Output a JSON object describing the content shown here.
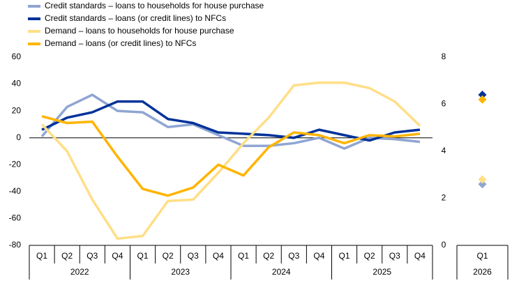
{
  "chart_data": [
    {
      "type": "line",
      "categories": [
        "Q1",
        "Q2",
        "Q3",
        "Q4",
        "Q1",
        "Q2",
        "Q3",
        "Q4",
        "Q1",
        "Q2",
        "Q3",
        "Q4",
        "Q1",
        "Q2",
        "Q3",
        "Q4"
      ],
      "groups": [
        "2022",
        "2023",
        "2024",
        "2025"
      ],
      "ylim": [
        -80,
        60
      ],
      "yticks": [
        -80,
        -60,
        -40,
        -20,
        0,
        20,
        40,
        60
      ],
      "legend": "top-left",
      "series": [
        {
          "name": "Credit standards – loans to households for house purchase",
          "color": "#8fa5d3",
          "values": [
            1,
            23,
            32,
            20,
            19,
            8,
            10,
            2,
            -6,
            -6,
            -4,
            0,
            -8,
            0,
            -1,
            -3
          ]
        },
        {
          "name": "Credit standards – loans (or credit lines) to NFCs",
          "color": "#003299",
          "values": [
            6,
            15,
            19,
            27,
            27,
            14,
            11,
            4,
            3,
            2,
            0,
            6,
            2,
            -2,
            4,
            6
          ]
        },
        {
          "name": "Demand – loans to households for house purchase",
          "color": "#ffde85",
          "values": [
            10,
            -10,
            -46,
            -75,
            -73,
            -47,
            -46,
            -26,
            -4,
            15,
            39,
            41,
            41,
            37,
            27,
            9
          ]
        },
        {
          "name": "Demand – loans (or credit lines) to NFCs",
          "color": "#ffb400",
          "values": [
            16,
            11,
            12,
            -14,
            -38,
            -43,
            -37,
            -20,
            -28,
            -7,
            4,
            2,
            -4,
            2,
            1,
            3
          ]
        }
      ]
    },
    {
      "type": "scatter",
      "categories": [
        "Q1"
      ],
      "groups": [
        "2026"
      ],
      "ylim": [
        0,
        8
      ],
      "yticks": [
        0,
        2,
        4,
        6,
        8
      ],
      "series": [
        {
          "color": "#8fa5d3",
          "values": [
            2.6
          ]
        },
        {
          "color": "#003299",
          "values": [
            6.4
          ]
        },
        {
          "color": "#ffde85",
          "values": [
            2.8
          ]
        },
        {
          "color": "#ffb400",
          "values": [
            6.2
          ]
        }
      ]
    }
  ]
}
